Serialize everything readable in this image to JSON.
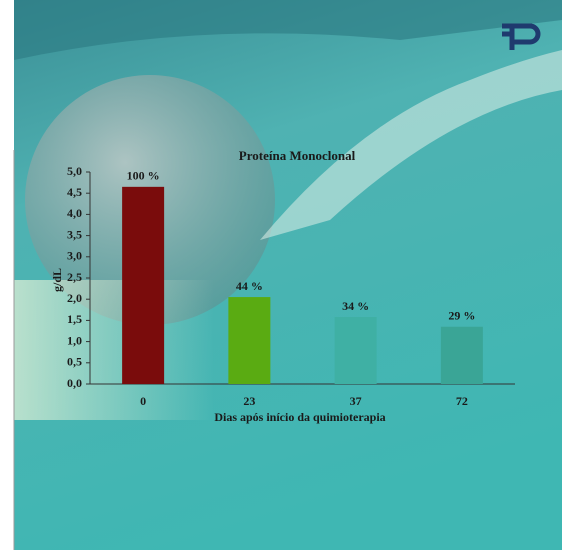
{
  "chart_data": {
    "type": "bar",
    "title": "Proteína Monoclonal",
    "x_label": "Dias após início da quimioterapia",
    "y_label": "g/dL",
    "categories": [
      "0",
      "23",
      "37",
      "72"
    ],
    "values": [
      4.65,
      2.05,
      1.58,
      1.35
    ],
    "annotations": [
      "100 %",
      "44 %",
      "34 %",
      "29 %"
    ],
    "colors": [
      "#7a0c0c",
      "#5aab12",
      "#3fb0a4",
      "#3aa596"
    ],
    "ylim": [
      0,
      5
    ],
    "yticks": [
      {
        "value": 0,
        "label": "0,0"
      },
      {
        "value": 0.5,
        "label": "0,5"
      },
      {
        "value": 1,
        "label": "1,0"
      },
      {
        "value": 1.5,
        "label": "1,5"
      },
      {
        "value": 2,
        "label": "2,0"
      },
      {
        "value": 2.5,
        "label": "2,5"
      },
      {
        "value": 3,
        "label": "3,0"
      },
      {
        "value": 3.5,
        "label": "3,5"
      },
      {
        "value": 4,
        "label": "4,0"
      },
      {
        "value": 4.5,
        "label": "4,5"
      },
      {
        "value": 5,
        "label": "5,0"
      }
    ],
    "grid": false
  }
}
